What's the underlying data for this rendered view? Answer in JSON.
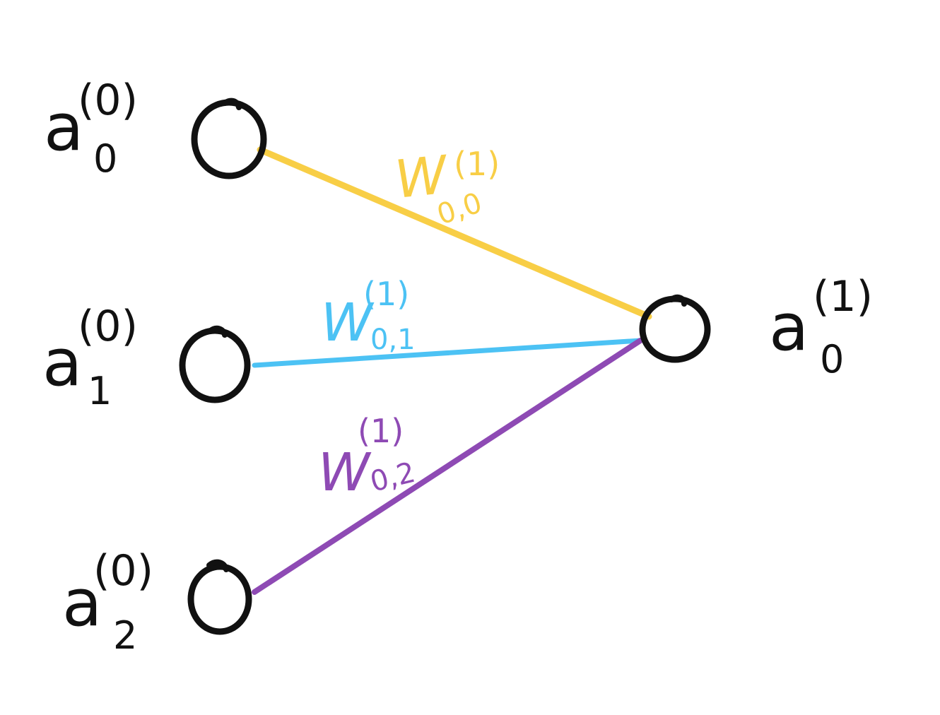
{
  "colors": {
    "ink": "#111111",
    "edge_w00": "#F8CE46",
    "edge_w01": "#4CC2F4",
    "edge_w02": "#8E4AB4"
  },
  "neurons": {
    "input_0": {
      "base": "a",
      "superscript": "(0)",
      "subscript": "0"
    },
    "input_1": {
      "base": "a",
      "superscript": "(0)",
      "subscript": "1"
    },
    "input_2": {
      "base": "a",
      "superscript": "(0)",
      "subscript": "2"
    },
    "output_0": {
      "base": "a",
      "superscript": "(1)",
      "subscript": "0"
    }
  },
  "weights": {
    "w00": {
      "base": "W",
      "superscript": "(1)",
      "subscript": "0,0"
    },
    "w01": {
      "base": "W",
      "superscript": "(1)",
      "subscript": "0,1"
    },
    "w02": {
      "base": "W",
      "superscript": "(1)",
      "subscript": "0,2"
    }
  }
}
